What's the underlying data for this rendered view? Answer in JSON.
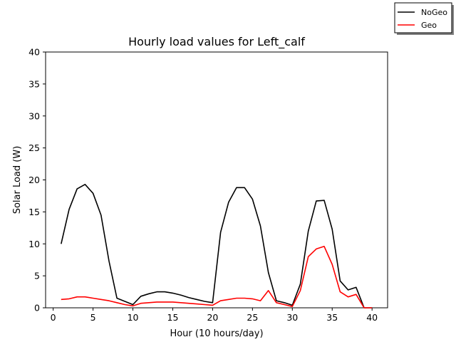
{
  "chart_data": {
    "type": "line",
    "title": "Hourly load values for Left_calf",
    "xlabel": "Hour (10 hours/day)",
    "ylabel": "Solar Load (W)",
    "xlim": [
      -0.95,
      41.95
    ],
    "ylim": [
      0,
      40
    ],
    "xticks": [
      0,
      5,
      10,
      15,
      20,
      25,
      30,
      35,
      40
    ],
    "yticks": [
      0,
      5,
      10,
      15,
      20,
      25,
      30,
      35,
      40
    ],
    "grid": false,
    "legend_position": "top-right (outside plot)",
    "x": [
      1,
      2,
      3,
      4,
      5,
      6,
      7,
      8,
      9,
      10,
      11,
      12,
      13,
      14,
      15,
      16,
      17,
      18,
      19,
      20,
      21,
      22,
      23,
      24,
      25,
      26,
      27,
      28,
      29,
      30,
      31,
      32,
      33,
      34,
      35,
      36,
      37,
      38,
      39,
      40
    ],
    "series": [
      {
        "name": "NoGeo",
        "color": "#000000",
        "values": [
          10.0,
          15.4,
          18.6,
          19.3,
          17.9,
          14.5,
          7.3,
          1.5,
          1.0,
          0.5,
          1.8,
          2.2,
          2.5,
          2.5,
          2.3,
          2.0,
          1.6,
          1.3,
          1.0,
          0.8,
          11.8,
          16.5,
          18.8,
          18.8,
          17.0,
          12.8,
          5.5,
          1.1,
          0.8,
          0.4,
          3.7,
          12.0,
          16.7,
          16.8,
          12.3,
          4.2,
          2.8,
          3.2,
          0.0,
          0.0
        ]
      },
      {
        "name": "Geo",
        "color": "#ff0000",
        "values": [
          1.3,
          1.4,
          1.7,
          1.7,
          1.5,
          1.3,
          1.1,
          0.8,
          0.5,
          0.3,
          0.7,
          0.8,
          0.9,
          0.9,
          0.9,
          0.8,
          0.7,
          0.6,
          0.5,
          0.4,
          1.1,
          1.3,
          1.5,
          1.5,
          1.4,
          1.1,
          2.7,
          0.8,
          0.5,
          0.2,
          2.7,
          8.0,
          9.2,
          9.6,
          6.8,
          2.5,
          1.7,
          2.1,
          0.0,
          0.0
        ]
      }
    ]
  }
}
